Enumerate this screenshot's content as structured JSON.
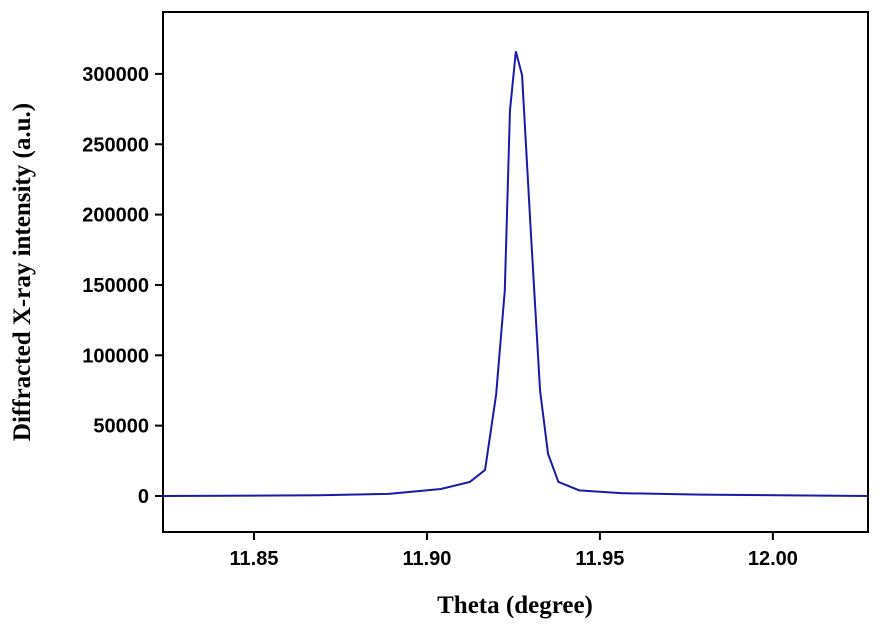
{
  "chart_data": {
    "type": "line",
    "x_label": "Theta (degree)",
    "y_label": "Diffracted X-ray intensity (a.u.)",
    "series": [
      {
        "name": "intensity",
        "color": "#1a1aa8",
        "x": [
          11.8237,
          11.869,
          11.889,
          11.904,
          11.9124,
          11.9168,
          11.92,
          11.9225,
          11.924,
          11.9257,
          11.9275,
          11.93,
          11.9327,
          11.935,
          11.938,
          11.944,
          11.956,
          11.979,
          12.0275
        ],
        "values": [
          0,
          500,
          1500,
          5000,
          10000,
          18500,
          72000,
          146000,
          274000,
          316000,
          299000,
          189000,
          75000,
          30000,
          10000,
          4000,
          2000,
          1000,
          0
        ]
      }
    ],
    "xlim": [
      11.8237,
      12.0275
    ],
    "ylim": [
      -25600,
      344000
    ],
    "xticks": [
      11.85,
      {
        "value": 11.9,
        "label": "11.90"
      },
      11.95,
      {
        "value": 12.0,
        "label": "12.00"
      }
    ],
    "yticks": [
      0,
      50000,
      100000,
      150000,
      200000,
      250000,
      300000
    ]
  }
}
